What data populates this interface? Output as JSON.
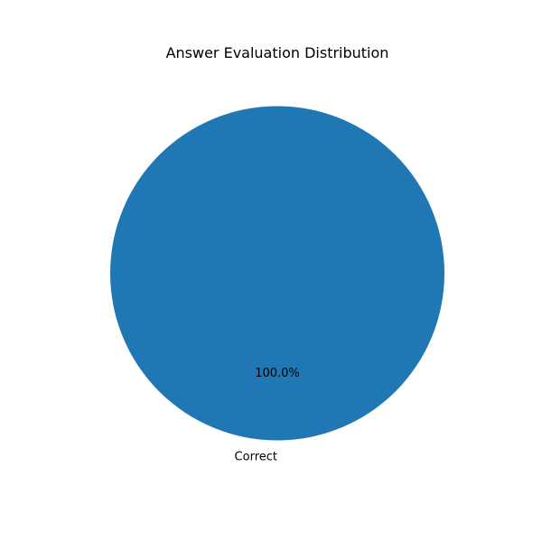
{
  "chart_data": {
    "type": "pie",
    "title": "Answer Evaluation Distribution",
    "categories": [
      "Correct"
    ],
    "values": [
      1
    ],
    "percent_labels": [
      "100.0%"
    ],
    "colors": [
      "#1f77b4"
    ],
    "start_angle_deg": 90,
    "counterclockwise": true
  }
}
